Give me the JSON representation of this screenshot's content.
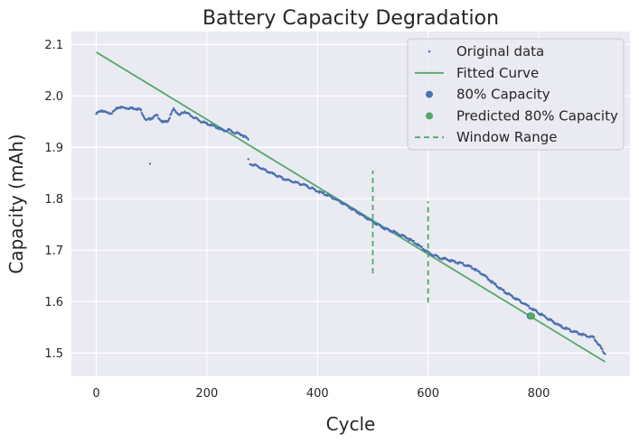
{
  "chart_data": {
    "type": "scatter",
    "title": "Battery Capacity Degradation",
    "xlabel": "Cycle",
    "ylabel": "Capacity (mAh)",
    "xlim": [
      -45,
      965
    ],
    "ylim": [
      1.455,
      2.125
    ],
    "xticks": [
      0,
      200,
      400,
      600,
      800
    ],
    "yticks": [
      1.5,
      1.6,
      1.7,
      1.8,
      1.9,
      2.0,
      2.1
    ],
    "xtick_labels": [
      "0",
      "200",
      "400",
      "600",
      "800"
    ],
    "ytick_labels": [
      "1.5",
      "1.6",
      "1.7",
      "1.8",
      "1.9",
      "2.0",
      "2.1"
    ],
    "grid": true,
    "legend_position": "top-right",
    "colors": {
      "background": "#eaeaf2",
      "grid": "#ffffff",
      "data": "#4c72b0",
      "fit": "#55a868",
      "capacity80": "#4c72b0",
      "predicted": "#55a868",
      "window": "#55a868"
    },
    "series": [
      {
        "name": "Original data",
        "kind": "points",
        "segments": [
          {
            "x": [
              0,
              10,
              20,
              30,
              40,
              50,
              60,
              70,
              80,
              90,
              100,
              110,
              120,
              130,
              140,
              150,
              160,
              170,
              180,
              190,
              200,
              210,
              220,
              230,
              240,
              250,
              260,
              270,
              275
            ],
            "y": [
              1.965,
              1.972,
              1.966,
              1.968,
              1.978,
              1.977,
              1.976,
              1.976,
              1.973,
              1.952,
              1.957,
              1.962,
              1.948,
              1.952,
              1.975,
              1.962,
              1.97,
              1.962,
              1.956,
              1.95,
              1.946,
              1.942,
              1.938,
              1.932,
              1.934,
              1.928,
              1.926,
              1.92,
              1.915
            ]
          },
          {
            "x": [
              278,
              290,
              300,
              320,
              340,
              360,
              380,
              400,
              420,
              440,
              460,
              480,
              500,
              520,
              540,
              560,
              580,
              600,
              620,
              640,
              660,
              680,
              700,
              720,
              740,
              760,
              780,
              800,
              820,
              840,
              860,
              880,
              900,
              920
            ],
            "y": [
              1.868,
              1.864,
              1.858,
              1.848,
              1.838,
              1.832,
              1.825,
              1.815,
              1.806,
              1.795,
              1.782,
              1.768,
              1.755,
              1.743,
              1.735,
              1.725,
              1.712,
              1.695,
              1.686,
              1.68,
              1.674,
              1.666,
              1.652,
              1.634,
              1.618,
              1.605,
              1.592,
              1.578,
              1.565,
              1.552,
              1.543,
              1.536,
              1.53,
              1.498
            ]
          }
        ],
        "outliers": [
          {
            "x": 97,
            "y": 1.868
          },
          {
            "x": 275,
            "y": 1.877
          }
        ]
      },
      {
        "name": "Fitted Curve",
        "kind": "line",
        "x": [
          0,
          920
        ],
        "y": [
          2.085,
          1.483
        ]
      },
      {
        "name": "80% Capacity",
        "kind": "marker",
        "x": [
          785
        ],
        "y": [
          1.572
        ]
      },
      {
        "name": "Predicted 80% Capacity",
        "kind": "marker",
        "x": [
          787
        ],
        "y": [
          1.572
        ]
      },
      {
        "name": "Window Range",
        "kind": "vlines",
        "lines": [
          {
            "x": 500,
            "y": [
              1.655,
              1.855
            ]
          },
          {
            "x": 600,
            "y": [
              1.598,
              1.795
            ]
          }
        ]
      }
    ]
  }
}
